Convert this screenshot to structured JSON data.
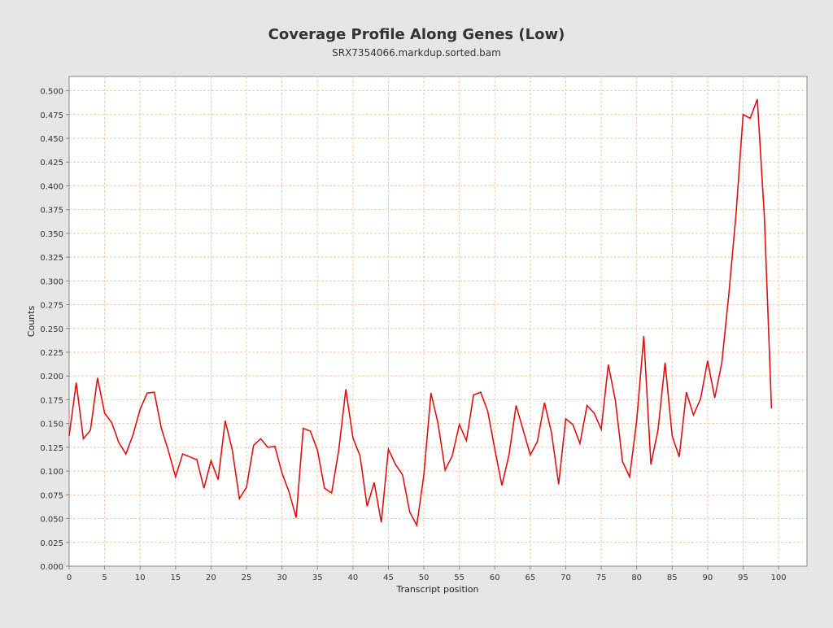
{
  "chart_data": {
    "type": "line",
    "title": "Coverage Profile Along Genes (Low)",
    "subtitle": "SRX7354066.markdup.sorted.bam",
    "xlabel": "Transcript position",
    "ylabel": "Counts",
    "xlim": [
      0,
      104
    ],
    "ylim": [
      0,
      0.515
    ],
    "x_ticks": [
      0,
      5,
      10,
      15,
      20,
      25,
      30,
      35,
      40,
      45,
      50,
      55,
      60,
      65,
      70,
      75,
      80,
      85,
      90,
      95,
      100
    ],
    "y_ticks": [
      0.0,
      0.025,
      0.05,
      0.075,
      0.1,
      0.125,
      0.15,
      0.175,
      0.2,
      0.225,
      0.25,
      0.275,
      0.3,
      0.325,
      0.35,
      0.375,
      0.4,
      0.425,
      0.45,
      0.475,
      0.5
    ],
    "y_tick_labels": [
      "0.000",
      "0.025",
      "0.050",
      "0.075",
      "0.100",
      "0.125",
      "0.150",
      "0.175",
      "0.200",
      "0.225",
      "0.250",
      "0.275",
      "0.300",
      "0.325",
      "0.350",
      "0.375",
      "0.400",
      "0.425",
      "0.450",
      "0.475",
      "0.500"
    ],
    "grid": true,
    "series": [
      {
        "color": "#dd1111",
        "x": [
          0,
          1,
          2,
          3,
          4,
          5,
          6,
          7,
          8,
          9,
          10,
          11,
          12,
          13,
          14,
          15,
          16,
          17,
          18,
          19,
          20,
          21,
          22,
          23,
          24,
          25,
          26,
          27,
          28,
          29,
          30,
          31,
          32,
          33,
          34,
          35,
          36,
          37,
          38,
          39,
          40,
          41,
          42,
          43,
          44,
          45,
          46,
          47,
          48,
          49,
          50,
          51,
          52,
          53,
          54,
          55,
          56,
          57,
          58,
          59,
          60,
          61,
          62,
          63,
          64,
          65,
          66,
          67,
          68,
          69,
          70,
          71,
          72,
          73,
          74,
          75,
          76,
          77,
          78,
          79,
          80,
          81,
          82,
          83,
          84,
          85,
          86,
          87,
          88,
          89,
          90,
          91,
          92,
          93,
          94,
          95,
          96,
          97,
          98,
          99
        ],
        "y": [
          0.137,
          0.193,
          0.134,
          0.143,
          0.198,
          0.161,
          0.151,
          0.13,
          0.118,
          0.138,
          0.165,
          0.182,
          0.183,
          0.145,
          0.121,
          0.094,
          0.118,
          0.115,
          0.112,
          0.082,
          0.111,
          0.091,
          0.153,
          0.122,
          0.071,
          0.083,
          0.127,
          0.134,
          0.125,
          0.126,
          0.098,
          0.078,
          0.051,
          0.145,
          0.142,
          0.122,
          0.082,
          0.077,
          0.122,
          0.186,
          0.135,
          0.116,
          0.063,
          0.088,
          0.046,
          0.123,
          0.107,
          0.096,
          0.057,
          0.043,
          0.096,
          0.182,
          0.15,
          0.101,
          0.116,
          0.149,
          0.132,
          0.18,
          0.183,
          0.163,
          0.123,
          0.085,
          0.117,
          0.169,
          0.143,
          0.117,
          0.131,
          0.172,
          0.14,
          0.086,
          0.155,
          0.149,
          0.129,
          0.169,
          0.161,
          0.144,
          0.212,
          0.174,
          0.11,
          0.094,
          0.153,
          0.242,
          0.107,
          0.143,
          0.214,
          0.137,
          0.115,
          0.183,
          0.159,
          0.176,
          0.216,
          0.177,
          0.214,
          0.287,
          0.37,
          0.475,
          0.471,
          0.491,
          0.367,
          0.166
        ]
      }
    ]
  }
}
